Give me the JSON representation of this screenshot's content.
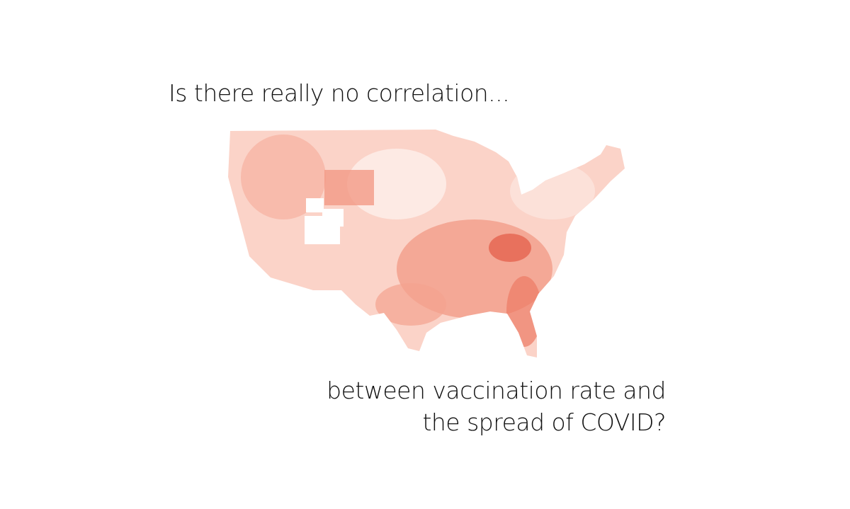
{
  "title": "Is there really no correlation...",
  "caption": {
    "line1": "between vaccination rate and",
    "line2": "the spread of COVID?"
  }
}
